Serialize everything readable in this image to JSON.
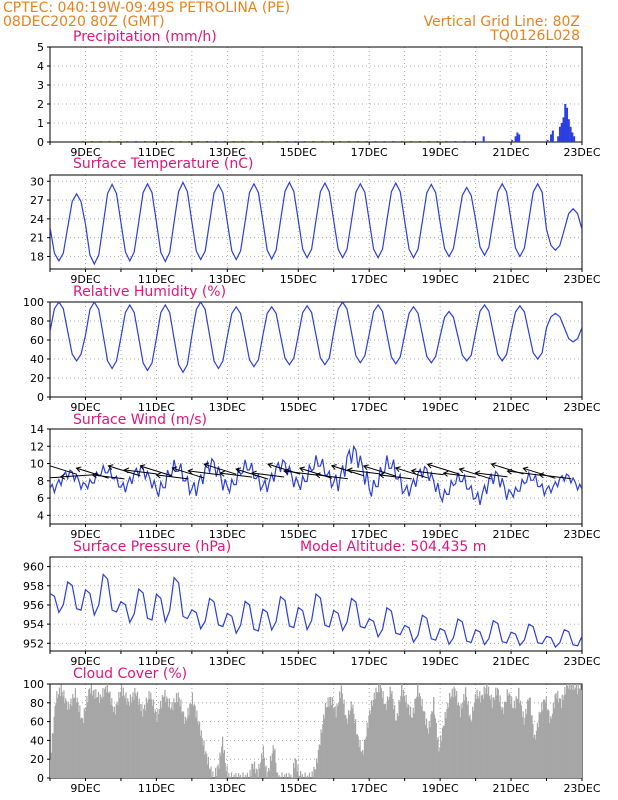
{
  "header": {
    "line1_left": "CPTEC:   040:19W-09:49S   PETROLINA (PE)",
    "line2_left": "08DEC2020 80Z (GMT)",
    "line1_right": "Vertical Grid Line: 80Z",
    "line2_right": "TQ0126L028"
  },
  "colors": {
    "header": "#e8821e",
    "title": "#e0167a",
    "line": "#2b3fe0",
    "bars": "#2b3fe0",
    "cloud": "#a6a6a6",
    "grid": "#9a9a9a"
  },
  "x_ticks": [
    "9DEC",
    "11DEC",
    "13DEC",
    "15DEC",
    "17DEC",
    "19DEC",
    "21DEC",
    "23DEC"
  ],
  "chart_data": [
    {
      "id": "precip",
      "type": "bar",
      "title": "Precipitation (mm/h)",
      "ylim": [
        0,
        5
      ],
      "yticks": [
        0,
        1,
        2,
        3,
        4,
        5
      ],
      "x_unit": "day of December 2020 (decimal)",
      "xlim": [
        8.0,
        23.0
      ],
      "series": [
        {
          "values": [
            [
              20.2,
              0.3
            ],
            [
              21.0,
              0.1
            ],
            [
              21.1,
              0.3
            ],
            [
              21.15,
              0.5
            ],
            [
              21.2,
              0.4
            ],
            [
              22.0,
              0.1
            ],
            [
              22.1,
              0.4
            ],
            [
              22.15,
              0.6
            ],
            [
              22.3,
              0.3
            ],
            [
              22.35,
              0.8
            ],
            [
              22.4,
              1.0
            ],
            [
              22.45,
              1.3
            ],
            [
              22.5,
              2.0
            ],
            [
              22.55,
              1.8
            ],
            [
              22.6,
              1.2
            ],
            [
              22.65,
              0.8
            ],
            [
              22.7,
              0.5
            ],
            [
              22.75,
              0.3
            ]
          ]
        }
      ]
    },
    {
      "id": "temp",
      "type": "line",
      "title": "Surface Temperature (nC)",
      "ylim": [
        16,
        31
      ],
      "yticks": [
        18,
        21,
        24,
        27,
        30
      ],
      "x_unit": "day of December 2020 (decimal)",
      "xlim": [
        8.0,
        23.0
      ],
      "daily_min": [
        17.3,
        16.8,
        17.3,
        17.2,
        17.5,
        17.5,
        17.6,
        17.8,
        17.8,
        17.8,
        17.8,
        18.0,
        18.2,
        18.0,
        19.0
      ],
      "daily_max": [
        28.0,
        29.5,
        29.6,
        29.8,
        29.5,
        29.6,
        29.8,
        29.7,
        29.6,
        29.7,
        29.5,
        29.0,
        29.6,
        29.6,
        25.6
      ]
    },
    {
      "id": "rh",
      "type": "line",
      "title": "Relative Humidity (%)",
      "ylim": [
        0,
        100
      ],
      "yticks": [
        0,
        20,
        40,
        60,
        80,
        100
      ],
      "x_unit": "day of December 2020 (decimal)",
      "xlim": [
        8.0,
        23.0
      ],
      "daily_max": [
        100,
        100,
        97,
        97,
        100,
        95,
        95,
        96,
        100,
        97,
        95,
        90,
        97,
        96,
        88
      ],
      "daily_min": [
        38,
        30,
        28,
        26,
        30,
        32,
        34,
        34,
        36,
        35,
        36,
        38,
        38,
        40,
        58
      ]
    },
    {
      "id": "wind",
      "type": "line",
      "title": "Surface Wind (m/s)",
      "ylim": [
        3,
        14
      ],
      "yticks": [
        4,
        6,
        8,
        10,
        12,
        14
      ],
      "x_unit": "day of December 2020 (decimal)",
      "xlim": [
        8.0,
        23.0
      ],
      "vectors_note": "wind arrows drawn along y≈8.5 m/s, pointing westward",
      "daily_high": [
        9.5,
        9.8,
        10.0,
        10.5,
        11.0,
        10.5,
        10.8,
        11.0,
        12.5,
        11.0,
        10.0,
        9.0,
        9.5,
        9.0,
        9.0
      ],
      "daily_low": [
        6.5,
        7.0,
        6.5,
        6.0,
        6.0,
        6.5,
        6.5,
        6.8,
        6.5,
        6.0,
        6.0,
        5.5,
        5.0,
        6.0,
        6.5
      ]
    },
    {
      "id": "pressure",
      "type": "line",
      "title": "Surface Pressure (hPa)",
      "subtitle": "Model Altitude: 504.435 m",
      "ylim": [
        951.2,
        961.0
      ],
      "yticks": [
        952,
        954,
        956,
        958,
        960
      ],
      "x_unit": "day of December 2020 (decimal)",
      "xlim": [
        8.0,
        23.0
      ],
      "daily_max": [
        958.7,
        959.6,
        958.0,
        959.3,
        957.0,
        956.7,
        957.2,
        957.5,
        957.0,
        956.0,
        955.2,
        954.8,
        954.6,
        954.2,
        953.6
      ],
      "daily_min": [
        954.5,
        954.0,
        953.4,
        953.2,
        952.8,
        952.3,
        952.6,
        952.6,
        952.6,
        952.0,
        951.5,
        951.3,
        951.3,
        951.3,
        951.2
      ]
    },
    {
      "id": "cloud",
      "type": "area",
      "title": "Cloud Cover (%)",
      "ylim": [
        0,
        100
      ],
      "yticks": [
        0,
        20,
        40,
        60,
        80,
        100
      ],
      "x_unit": "day of December 2020 (decimal)",
      "xlim": [
        8.0,
        23.0
      ],
      "segments": [
        [
          8.0,
          20
        ],
        [
          8.15,
          85
        ],
        [
          8.3,
          95
        ],
        [
          8.5,
          75
        ],
        [
          8.7,
          90
        ],
        [
          8.9,
          60
        ],
        [
          9.1,
          95
        ],
        [
          9.4,
          85
        ],
        [
          9.6,
          98
        ],
        [
          9.8,
          70
        ],
        [
          10.0,
          95
        ],
        [
          10.2,
          80
        ],
        [
          10.4,
          92
        ],
        [
          10.6,
          70
        ],
        [
          10.8,
          90
        ],
        [
          11.0,
          65
        ],
        [
          11.2,
          90
        ],
        [
          11.4,
          75
        ],
        [
          11.6,
          88
        ],
        [
          11.8,
          60
        ],
        [
          12.0,
          85
        ],
        [
          12.2,
          55
        ],
        [
          12.35,
          30
        ],
        [
          12.5,
          10
        ],
        [
          12.6,
          0
        ],
        [
          12.75,
          15
        ],
        [
          12.85,
          40
        ],
        [
          12.95,
          10
        ],
        [
          13.05,
          0
        ],
        [
          13.6,
          0
        ],
        [
          13.7,
          15
        ],
        [
          13.85,
          5
        ],
        [
          14.0,
          30
        ],
        [
          14.1,
          0
        ],
        [
          14.3,
          35
        ],
        [
          14.4,
          0
        ],
        [
          14.8,
          0
        ],
        [
          14.9,
          20
        ],
        [
          15.0,
          5
        ],
        [
          15.1,
          0
        ],
        [
          15.35,
          0
        ],
        [
          15.5,
          15
        ],
        [
          15.6,
          40
        ],
        [
          15.75,
          75
        ],
        [
          15.9,
          85
        ],
        [
          16.05,
          70
        ],
        [
          16.2,
          95
        ],
        [
          16.35,
          60
        ],
        [
          16.5,
          80
        ],
        [
          16.65,
          45
        ],
        [
          16.8,
          25
        ],
        [
          17.0,
          70
        ],
        [
          17.15,
          90
        ],
        [
          17.3,
          98
        ],
        [
          17.45,
          75
        ],
        [
          17.6,
          95
        ],
        [
          17.75,
          60
        ],
        [
          17.9,
          95
        ],
        [
          18.05,
          80
        ],
        [
          18.2,
          65
        ],
        [
          18.35,
          95
        ],
        [
          18.5,
          75
        ],
        [
          18.65,
          50
        ],
        [
          18.8,
          80
        ],
        [
          18.95,
          30
        ],
        [
          19.1,
          60
        ],
        [
          19.25,
          85
        ],
        [
          19.4,
          95
        ],
        [
          19.55,
          70
        ],
        [
          19.7,
          92
        ],
        [
          19.85,
          60
        ],
        [
          20.0,
          90
        ],
        [
          20.15,
          85
        ],
        [
          20.3,
          98
        ],
        [
          20.45,
          80
        ],
        [
          20.6,
          95
        ],
        [
          20.75,
          70
        ],
        [
          20.9,
          92
        ],
        [
          21.05,
          75
        ],
        [
          21.2,
          90
        ],
        [
          21.35,
          60
        ],
        [
          21.5,
          88
        ],
        [
          21.65,
          40
        ],
        [
          21.8,
          70
        ],
        [
          21.95,
          85
        ],
        [
          22.1,
          60
        ],
        [
          22.25,
          90
        ],
        [
          22.4,
          80
        ],
        [
          22.55,
          98
        ],
        [
          22.7,
          100
        ],
        [
          22.85,
          95
        ],
        [
          23.0,
          100
        ]
      ]
    }
  ]
}
